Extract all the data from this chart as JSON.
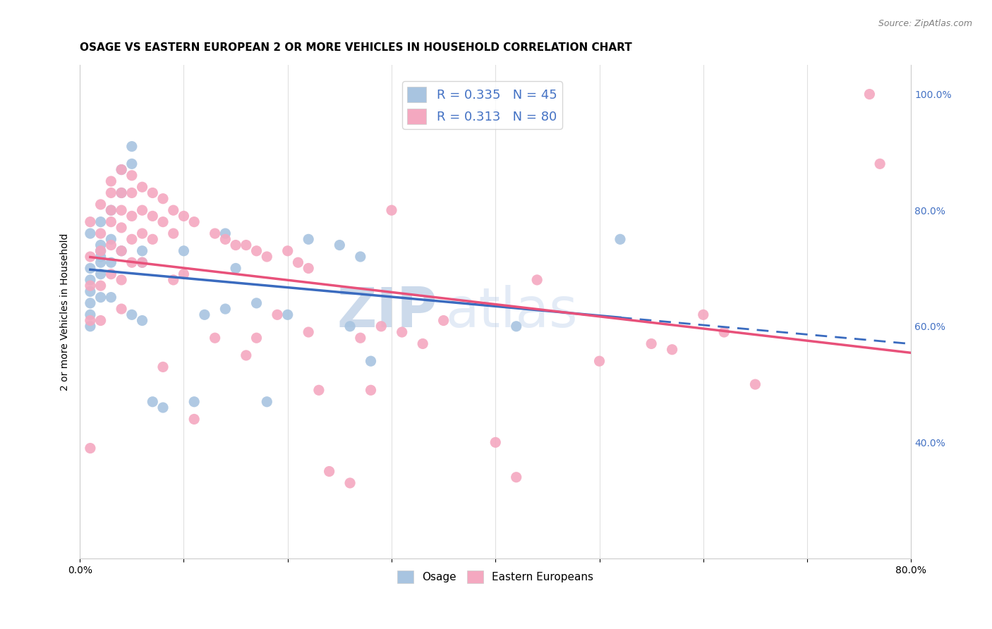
{
  "title": "OSAGE VS EASTERN EUROPEAN 2 OR MORE VEHICLES IN HOUSEHOLD CORRELATION CHART",
  "source": "Source: ZipAtlas.com",
  "ylabel": "2 or more Vehicles in Household",
  "xlim": [
    0.0,
    0.8
  ],
  "ylim": [
    0.2,
    1.05
  ],
  "osage_color": "#a8c4e0",
  "eastern_color": "#f4a8c0",
  "osage_line_color": "#3a6bbf",
  "eastern_line_color": "#e8517a",
  "watermark_zip": "ZIP",
  "watermark_atlas": "atlas",
  "osage_x": [
    0.02,
    0.01,
    0.02,
    0.01,
    0.01,
    0.01,
    0.01,
    0.01,
    0.01,
    0.02,
    0.02,
    0.02,
    0.02,
    0.02,
    0.03,
    0.03,
    0.03,
    0.03,
    0.04,
    0.04,
    0.04,
    0.05,
    0.05,
    0.05,
    0.06,
    0.06,
    0.06,
    0.07,
    0.08,
    0.1,
    0.11,
    0.12,
    0.14,
    0.14,
    0.15,
    0.17,
    0.18,
    0.2,
    0.22,
    0.25,
    0.26,
    0.27,
    0.28,
    0.42,
    0.52
  ],
  "osage_y": [
    0.72,
    0.76,
    0.74,
    0.7,
    0.68,
    0.66,
    0.64,
    0.62,
    0.6,
    0.78,
    0.73,
    0.71,
    0.69,
    0.65,
    0.8,
    0.75,
    0.71,
    0.65,
    0.87,
    0.83,
    0.73,
    0.91,
    0.88,
    0.62,
    0.73,
    0.71,
    0.61,
    0.47,
    0.46,
    0.73,
    0.47,
    0.62,
    0.76,
    0.63,
    0.7,
    0.64,
    0.47,
    0.62,
    0.75,
    0.74,
    0.6,
    0.72,
    0.54,
    0.6,
    0.75
  ],
  "eastern_x": [
    0.01,
    0.01,
    0.01,
    0.01,
    0.01,
    0.02,
    0.02,
    0.02,
    0.02,
    0.02,
    0.03,
    0.03,
    0.03,
    0.03,
    0.03,
    0.03,
    0.04,
    0.04,
    0.04,
    0.04,
    0.04,
    0.04,
    0.04,
    0.05,
    0.05,
    0.05,
    0.05,
    0.05,
    0.06,
    0.06,
    0.06,
    0.06,
    0.07,
    0.07,
    0.07,
    0.08,
    0.08,
    0.08,
    0.09,
    0.09,
    0.09,
    0.1,
    0.1,
    0.11,
    0.11,
    0.13,
    0.13,
    0.14,
    0.15,
    0.16,
    0.16,
    0.17,
    0.17,
    0.18,
    0.19,
    0.2,
    0.21,
    0.22,
    0.22,
    0.23,
    0.24,
    0.26,
    0.27,
    0.28,
    0.29,
    0.3,
    0.31,
    0.33,
    0.35,
    0.4,
    0.42,
    0.44,
    0.5,
    0.55,
    0.57,
    0.6,
    0.62,
    0.65,
    0.76,
    0.77
  ],
  "eastern_y": [
    0.78,
    0.72,
    0.67,
    0.61,
    0.39,
    0.81,
    0.76,
    0.73,
    0.67,
    0.61,
    0.85,
    0.83,
    0.8,
    0.78,
    0.74,
    0.69,
    0.87,
    0.83,
    0.8,
    0.77,
    0.73,
    0.68,
    0.63,
    0.86,
    0.83,
    0.79,
    0.75,
    0.71,
    0.84,
    0.8,
    0.76,
    0.71,
    0.83,
    0.79,
    0.75,
    0.82,
    0.78,
    0.53,
    0.8,
    0.76,
    0.68,
    0.79,
    0.69,
    0.78,
    0.44,
    0.76,
    0.58,
    0.75,
    0.74,
    0.55,
    0.74,
    0.73,
    0.58,
    0.72,
    0.62,
    0.73,
    0.71,
    0.7,
    0.59,
    0.49,
    0.35,
    0.33,
    0.58,
    0.49,
    0.6,
    0.8,
    0.59,
    0.57,
    0.61,
    0.4,
    0.34,
    0.68,
    0.54,
    0.57,
    0.56,
    0.62,
    0.59,
    0.5,
    1.0,
    0.88
  ],
  "background_color": "#ffffff",
  "grid_color": "#e0e0e0",
  "title_fontsize": 11,
  "label_fontsize": 10,
  "tick_fontsize": 10,
  "right_tick_color": "#4472c4"
}
